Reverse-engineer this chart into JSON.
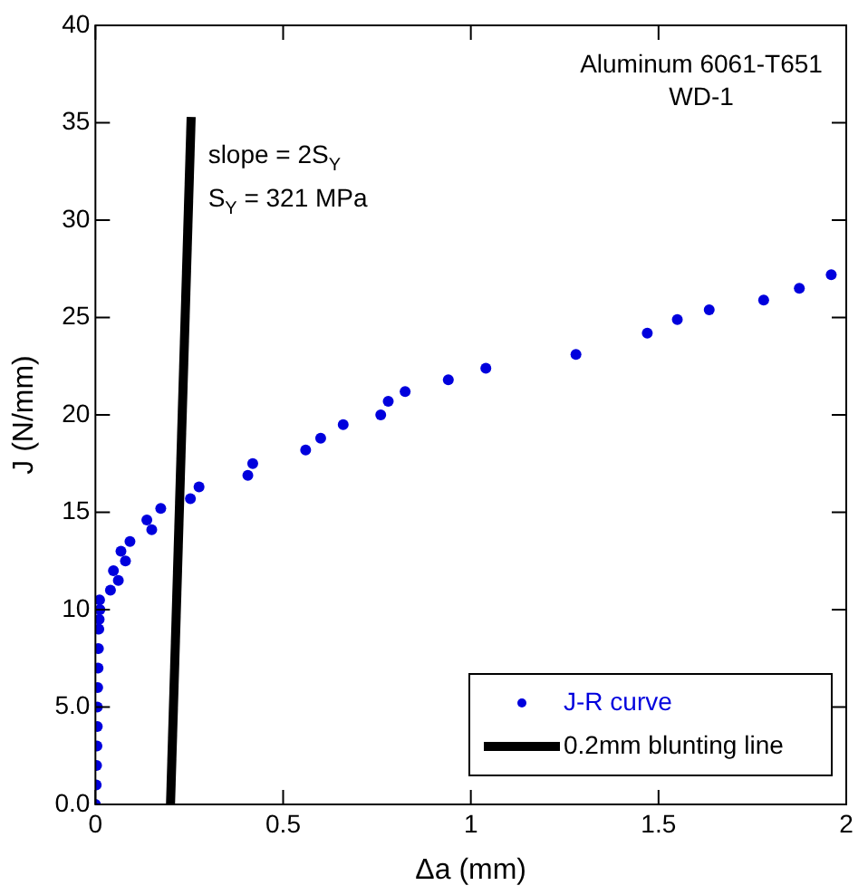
{
  "chart_data": {
    "type": "scatter",
    "xlabel": "Δa (mm)",
    "ylabel": "J (N/mm)",
    "xlim": [
      0,
      2
    ],
    "xticks": [
      0,
      0.5,
      1,
      1.5,
      2
    ],
    "ylim": [
      0,
      40
    ],
    "yticks": [
      {
        "value": 0,
        "label": "0.0"
      },
      {
        "value": 5,
        "label": "5.0"
      },
      10,
      15,
      20,
      25,
      30,
      35,
      40
    ],
    "grid": false,
    "legend": "bottom right",
    "marker": "circle",
    "annotations": [
      "Aluminum 6061-T651",
      "WD-1",
      "slope = 2S$_{Y}$",
      "S$_{Y}$ = 321 MPa"
    ],
    "series": [
      {
        "name": "J-R curve",
        "color": "#0000dd",
        "x": [
          0,
          0.002,
          0.003,
          0.004,
          0.005,
          0.005,
          0.006,
          0.007,
          0.008,
          0.009,
          0.01,
          0.012,
          0.011,
          0.04,
          0.048,
          0.061,
          0.068,
          0.08,
          0.092,
          0.137,
          0.15,
          0.174,
          0.253,
          0.276,
          0.406,
          0.419,
          0.56,
          0.6,
          0.66,
          0.76,
          0.78,
          0.825,
          0.94,
          1.04,
          1.28,
          1.47,
          1.55,
          1.635,
          1.78,
          1.875,
          1.96
        ],
        "values": [
          0,
          1,
          2,
          3,
          4,
          5,
          6,
          7,
          8,
          9,
          9.5,
          10,
          10.5,
          11,
          12,
          11.5,
          13,
          12.5,
          13.5,
          14.6,
          14.1,
          15.2,
          15.7,
          16.3,
          16.9,
          17.5,
          18.2,
          18.8,
          19.5,
          20,
          20.7,
          21.2,
          21.8,
          22.4,
          23.1,
          24.2,
          24.9,
          25.4,
          25.9,
          26.5,
          27.2
        ]
      },
      {
        "name": "0.2mm blunting line",
        "type": "line",
        "color": "#000000",
        "marker": "none",
        "line_style": "solid",
        "x": [
          0.2,
          0.255
        ],
        "values": [
          0,
          35.3
        ]
      }
    ]
  }
}
